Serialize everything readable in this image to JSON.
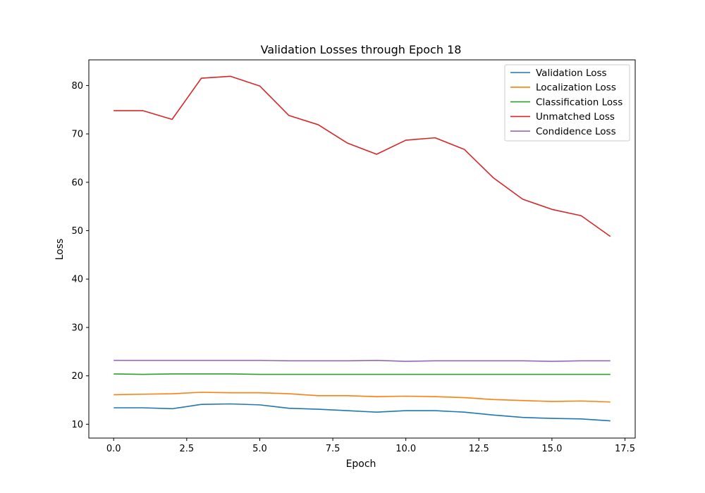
{
  "chart_data": {
    "type": "line",
    "title": "Validation Losses through Epoch 18",
    "xlabel": "Epoch",
    "ylabel": "Loss",
    "xlim": [
      -0.85,
      17.85
    ],
    "ylim": [
      7.14,
      85.3
    ],
    "xticks": [
      "0.0",
      "2.5",
      "5.0",
      "7.5",
      "10.0",
      "12.5",
      "15.0",
      "17.5"
    ],
    "yticks": [
      "10",
      "20",
      "30",
      "40",
      "50",
      "60",
      "70",
      "80"
    ],
    "grid": false,
    "legend_position": "top-right",
    "x": [
      0,
      1,
      2,
      3,
      4,
      5,
      6,
      7,
      8,
      9,
      10,
      11,
      12,
      13,
      14,
      15,
      16,
      17
    ],
    "series": [
      {
        "name": "Validation Loss",
        "color": "#1f77b4",
        "values": [
          13.4,
          13.4,
          13.2,
          14.1,
          14.2,
          14.0,
          13.3,
          13.1,
          12.8,
          12.5,
          12.8,
          12.8,
          12.5,
          11.9,
          11.4,
          11.2,
          11.1,
          10.7
        ]
      },
      {
        "name": "Localization Loss",
        "color": "#ff7f0e",
        "values": [
          16.1,
          16.2,
          16.3,
          16.6,
          16.5,
          16.5,
          16.3,
          15.9,
          15.9,
          15.7,
          15.8,
          15.7,
          15.5,
          15.1,
          14.9,
          14.7,
          14.8,
          14.6
        ]
      },
      {
        "name": "Classification Loss",
        "color": "#2ca02c",
        "values": [
          20.4,
          20.3,
          20.4,
          20.4,
          20.4,
          20.3,
          20.3,
          20.3,
          20.3,
          20.3,
          20.3,
          20.3,
          20.3,
          20.3,
          20.3,
          20.3,
          20.3,
          20.3
        ]
      },
      {
        "name": "Unmatched Loss",
        "color": "#d62728",
        "values": [
          74.8,
          74.8,
          73.0,
          81.5,
          81.9,
          79.9,
          73.8,
          71.9,
          68.1,
          65.8,
          68.7,
          69.2,
          66.8,
          60.9,
          56.5,
          54.4,
          53.1,
          48.8
        ]
      },
      {
        "name": "Condidence Loss",
        "color": "#9467bd",
        "values": [
          23.2,
          23.2,
          23.2,
          23.2,
          23.2,
          23.2,
          23.1,
          23.1,
          23.1,
          23.2,
          23.0,
          23.1,
          23.1,
          23.1,
          23.1,
          23.0,
          23.1,
          23.1
        ]
      }
    ]
  }
}
